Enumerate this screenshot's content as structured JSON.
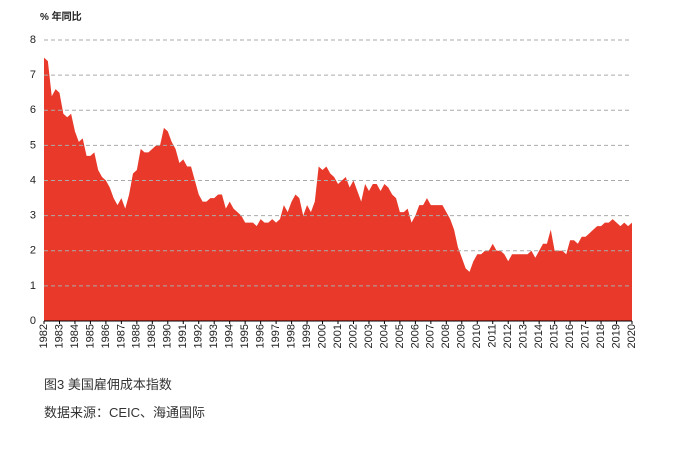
{
  "chart_data": {
    "type": "area",
    "ylabel": "% 年同比",
    "caption": "图3  美国雇佣成本指数",
    "source": "数据来源：CEIC、海通国际",
    "color": "#e8392a",
    "grid": true,
    "x": [
      1982,
      1982.25,
      1982.5,
      1982.75,
      1983,
      1983.25,
      1983.5,
      1983.75,
      1984,
      1984.25,
      1984.5,
      1984.75,
      1985,
      1985.25,
      1985.5,
      1985.75,
      1986,
      1986.25,
      1986.5,
      1986.75,
      1987,
      1987.25,
      1987.5,
      1987.75,
      1988,
      1988.25,
      1988.5,
      1988.75,
      1989,
      1989.25,
      1989.5,
      1989.75,
      1990,
      1990.25,
      1990.5,
      1990.75,
      1991,
      1991.25,
      1991.5,
      1991.75,
      1992,
      1992.25,
      1992.5,
      1992.75,
      1993,
      1993.25,
      1993.5,
      1993.75,
      1994,
      1994.25,
      1994.5,
      1994.75,
      1995,
      1995.25,
      1995.5,
      1995.75,
      1996,
      1996.25,
      1996.5,
      1996.75,
      1997,
      1997.25,
      1997.5,
      1997.75,
      1998,
      1998.25,
      1998.5,
      1998.75,
      1999,
      1999.25,
      1999.5,
      1999.75,
      2000,
      2000.25,
      2000.5,
      2000.75,
      2001,
      2001.25,
      2001.5,
      2001.75,
      2002,
      2002.25,
      2002.5,
      2002.75,
      2003,
      2003.25,
      2003.5,
      2003.75,
      2004,
      2004.25,
      2004.5,
      2004.75,
      2005,
      2005.25,
      2005.5,
      2005.75,
      2006,
      2006.25,
      2006.5,
      2006.75,
      2007,
      2007.25,
      2007.5,
      2007.75,
      2008,
      2008.25,
      2008.5,
      2008.75,
      2009,
      2009.25,
      2009.5,
      2009.75,
      2010,
      2010.25,
      2010.5,
      2010.75,
      2011,
      2011.25,
      2011.5,
      2011.75,
      2012,
      2012.25,
      2012.5,
      2012.75,
      2013,
      2013.25,
      2013.5,
      2013.75,
      2014,
      2014.25,
      2014.5,
      2014.75,
      2015,
      2015.25,
      2015.5,
      2015.75,
      2016,
      2016.25,
      2016.5,
      2016.75,
      2017,
      2017.25,
      2017.5,
      2017.75,
      2018,
      2018.25,
      2018.5,
      2018.75,
      2019,
      2019.25,
      2019.5,
      2019.75,
      2020
    ],
    "values": [
      7.5,
      7.4,
      6.4,
      6.6,
      6.5,
      5.9,
      5.8,
      5.9,
      5.4,
      5.1,
      5.2,
      4.7,
      4.7,
      4.8,
      4.3,
      4.1,
      4.0,
      3.8,
      3.5,
      3.3,
      3.5,
      3.2,
      3.6,
      4.2,
      4.3,
      4.9,
      4.8,
      4.8,
      4.9,
      5.0,
      5.0,
      5.5,
      5.4,
      5.1,
      4.9,
      4.5,
      4.6,
      4.4,
      4.4,
      4.0,
      3.6,
      3.4,
      3.4,
      3.5,
      3.5,
      3.6,
      3.6,
      3.2,
      3.4,
      3.2,
      3.1,
      3.0,
      2.8,
      2.8,
      2.8,
      2.7,
      2.9,
      2.8,
      2.8,
      2.9,
      2.8,
      2.9,
      3.3,
      3.1,
      3.4,
      3.6,
      3.5,
      3.0,
      3.3,
      3.1,
      3.4,
      4.4,
      4.3,
      4.4,
      4.2,
      4.1,
      3.9,
      4.0,
      4.1,
      3.8,
      4.0,
      3.7,
      3.4,
      3.9,
      3.7,
      3.9,
      3.9,
      3.7,
      3.9,
      3.8,
      3.6,
      3.5,
      3.1,
      3.1,
      3.2,
      2.8,
      3.0,
      3.3,
      3.3,
      3.5,
      3.3,
      3.3,
      3.3,
      3.3,
      3.1,
      2.9,
      2.6,
      2.1,
      1.8,
      1.5,
      1.4,
      1.7,
      1.9,
      1.9,
      2.0,
      2.0,
      2.2,
      2.0,
      2.0,
      1.9,
      1.7,
      1.9,
      1.9,
      1.9,
      1.9,
      1.9,
      2.0,
      1.8,
      2.0,
      2.2,
      2.2,
      2.6,
      2.0,
      2.0,
      2.0,
      1.9,
      2.3,
      2.3,
      2.2,
      2.4,
      2.4,
      2.5,
      2.6,
      2.7,
      2.7,
      2.8,
      2.8,
      2.9,
      2.8,
      2.7,
      2.8,
      2.7,
      2.8
    ],
    "xlim": [
      1982,
      2020
    ],
    "xticks": [
      1982,
      1983,
      1984,
      1985,
      1986,
      1987,
      1988,
      1989,
      1990,
      1991,
      1992,
      1993,
      1994,
      1995,
      1996,
      1997,
      1998,
      1999,
      2000,
      2001,
      2002,
      2003,
      2004,
      2005,
      2006,
      2007,
      2008,
      2009,
      2010,
      2011,
      2012,
      2013,
      2014,
      2015,
      2016,
      2017,
      2018,
      2019,
      2020
    ],
    "ylim": [
      0,
      8
    ],
    "yticks": [
      0,
      1,
      2,
      3,
      4,
      5,
      6,
      7,
      8
    ]
  }
}
